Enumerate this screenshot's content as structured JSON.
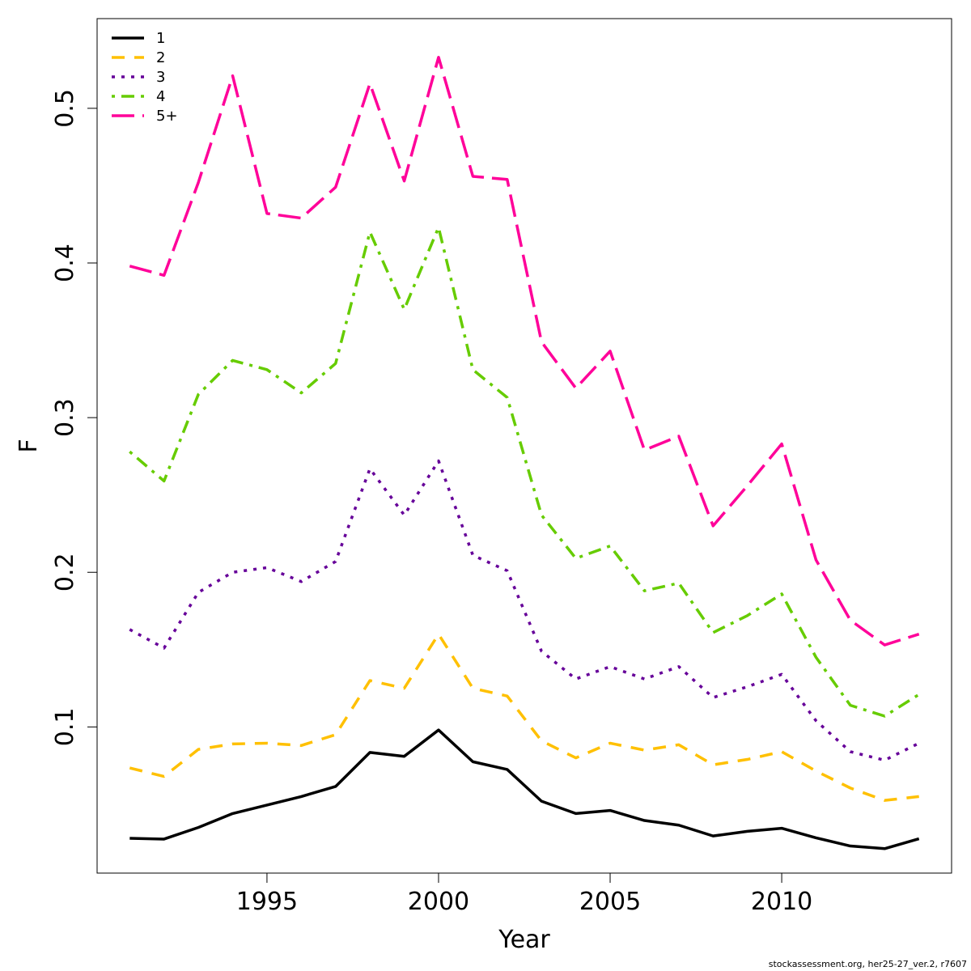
{
  "chart_data": {
    "type": "line",
    "xlabel": "Year",
    "ylabel": "F",
    "xlim": [
      1990.05,
      2014.95
    ],
    "ylim": [
      0.0055,
      0.558
    ],
    "x_ticks": [
      1995,
      2000,
      2005,
      2010
    ],
    "x_tick_labels": [
      "1995",
      "2000",
      "2005",
      "2010"
    ],
    "y_ticks": [
      0.1,
      0.2,
      0.3,
      0.4,
      0.5
    ],
    "y_tick_labels": [
      "0.1",
      "0.2",
      "0.3",
      "0.4",
      "0.5"
    ],
    "grid": false,
    "legend_position": "top-left",
    "x": [
      1991,
      1992,
      1993,
      1994,
      1995,
      1996,
      1997,
      1998,
      1999,
      2000,
      2001,
      2002,
      2003,
      2004,
      2005,
      2006,
      2007,
      2008,
      2009,
      2010,
      2011,
      2012,
      2013,
      2014
    ],
    "series": [
      {
        "name": "1",
        "color": "#000000",
        "dash": "solid",
        "values": [
          0.028,
          0.0275,
          0.035,
          0.044,
          0.0495,
          0.055,
          0.0615,
          0.0835,
          0.081,
          0.098,
          0.0775,
          0.0725,
          0.052,
          0.044,
          0.046,
          0.0395,
          0.0365,
          0.0295,
          0.0325,
          0.0345,
          0.0283,
          0.023,
          0.0213,
          0.0277
        ]
      },
      {
        "name": "2",
        "color": "#FFC000",
        "dash": "dashed",
        "values": [
          0.0735,
          0.068,
          0.0855,
          0.089,
          0.0895,
          0.088,
          0.095,
          0.13,
          0.125,
          0.16,
          0.125,
          0.12,
          0.091,
          0.08,
          0.0895,
          0.085,
          0.0885,
          0.0755,
          0.079,
          0.084,
          0.0715,
          0.0605,
          0.0525,
          0.055
        ]
      },
      {
        "name": "3",
        "color": "#660099",
        "dash": "dotted",
        "values": [
          0.163,
          0.151,
          0.187,
          0.2,
          0.203,
          0.194,
          0.207,
          0.267,
          0.237,
          0.272,
          0.211,
          0.201,
          0.149,
          0.131,
          0.139,
          0.131,
          0.139,
          0.119,
          0.126,
          0.134,
          0.104,
          0.084,
          0.0785,
          0.0895
        ]
      },
      {
        "name": "4",
        "color": "#66CC00",
        "dash": "dotdash",
        "values": [
          0.278,
          0.259,
          0.315,
          0.337,
          0.331,
          0.316,
          0.335,
          0.42,
          0.37,
          0.423,
          0.331,
          0.313,
          0.237,
          0.209,
          0.217,
          0.188,
          0.193,
          0.161,
          0.172,
          0.186,
          0.145,
          0.114,
          0.107,
          0.121
        ]
      },
      {
        "name": "5+",
        "color": "#FF0099",
        "dash": "longdash",
        "values": [
          0.398,
          0.392,
          0.452,
          0.521,
          0.432,
          0.429,
          0.449,
          0.516,
          0.453,
          0.533,
          0.456,
          0.454,
          0.349,
          0.319,
          0.343,
          0.279,
          0.288,
          0.23,
          0.256,
          0.283,
          0.208,
          0.169,
          0.153,
          0.16
        ]
      }
    ]
  },
  "footer": {
    "credit": "stockassessment.org, her25-27_ver.2, r7607"
  }
}
